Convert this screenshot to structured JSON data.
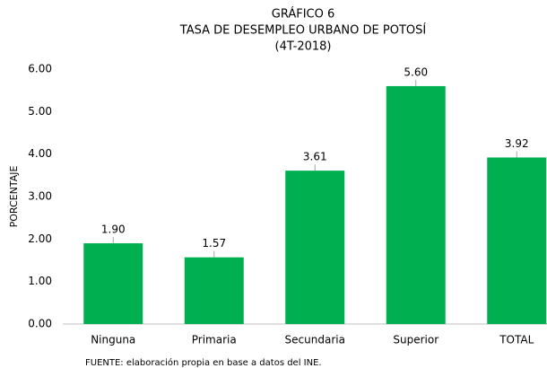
{
  "chart_data": {
    "type": "bar",
    "title_lines": [
      "GRÁFICO 6",
      "TASA DE DESEMPLEO URBANO DE POTOSÍ",
      "(4T-2018)"
    ],
    "ylabel": "PORCENTAJE",
    "categories": [
      "Ninguna",
      "Primaria",
      "Secundaria",
      "Superior",
      "TOTAL"
    ],
    "values": [
      1.9,
      1.57,
      3.61,
      5.6,
      3.92
    ],
    "value_labels": [
      "1.90",
      "1.57",
      "3.61",
      "5.60",
      "3.92"
    ],
    "color": "#00b050",
    "ylim": [
      0,
      6
    ],
    "yticks": [
      {
        "value": 0,
        "label": "0.00"
      },
      {
        "value": 1,
        "label": "1.00"
      },
      {
        "value": 2,
        "label": "2.00"
      },
      {
        "value": 3,
        "label": "3.00"
      },
      {
        "value": 4,
        "label": "4.00"
      },
      {
        "value": 5,
        "label": "5.00"
      },
      {
        "value": 6,
        "label": "6.00"
      }
    ],
    "grid": false,
    "source": "FUENTE: elaboración propia en base a datos del INE."
  }
}
